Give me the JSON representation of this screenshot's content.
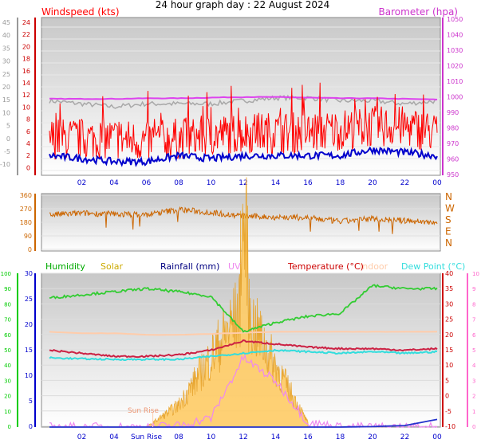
{
  "title": "24 hour graph day : 22 August 2024",
  "colors": {
    "windspeed": "#ff0000",
    "windavg": "#0000cc",
    "barometer": "#cc33cc",
    "barometer_line": "#dd44ee",
    "gust_grey": "#a8a8a8",
    "direction": "#cc6600",
    "humidity": "#00aa00",
    "humidity_line": "#33cc33",
    "solar": "#ccaa00",
    "solar_fill": "#ffcc66",
    "rainfall": "#000080",
    "rain_line": "#2233cc",
    "uv": "#ee88ee",
    "temperature": "#cc0000",
    "temp_line": "#cc2244",
    "indoor": "#ffccaa",
    "dewpoint": "#33dddd",
    "axis_blue": "#0000cc",
    "axis_green": "#00cc00",
    "axis_pink": "#ff66cc",
    "axis_red": "#cc0000",
    "axis_grey": "#999999"
  },
  "chart_data": [
    {
      "type": "line",
      "panel": "wind_baro",
      "labels": {
        "windspeed": "Windspeed (kts)",
        "barometer": "Barometer (hpa)"
      },
      "x_ticks": [
        "02",
        "04",
        "06",
        "08",
        "10",
        "12",
        "14",
        "16",
        "18",
        "20",
        "22",
        "00"
      ],
      "left_outer_ticks": [
        "45",
        "40",
        "35",
        "30",
        "25",
        "20",
        "15",
        "10",
        "5",
        "0",
        "-5",
        "-10"
      ],
      "left_inner_ticks": [
        "24",
        "22",
        "20",
        "18",
        "16",
        "14",
        "12",
        "10",
        "8",
        "6",
        "4",
        "2",
        "0"
      ],
      "right_ticks": [
        "1050",
        "1040",
        "1030",
        "1020",
        "1010",
        "1000",
        "990",
        "980",
        "970",
        "960",
        "950"
      ],
      "ylim_kts": [
        0,
        25
      ],
      "ylim_hpa": [
        945,
        1050
      ],
      "series": [
        {
          "name": "Barometer (hpa)",
          "x": [
            0,
            2,
            4,
            6,
            8,
            10,
            12,
            14,
            16,
            18,
            20,
            22,
            24
          ],
          "values": [
            1008,
            1008,
            1008,
            1008.5,
            1008.5,
            1009,
            1009.5,
            1009.5,
            1009,
            1008.5,
            1008.5,
            1008,
            1007.5
          ]
        },
        {
          "name": "Windspeed (kts)",
          "x": [
            0,
            2,
            4,
            6,
            8,
            10,
            12,
            14,
            16,
            18,
            20,
            22,
            24
          ],
          "values": [
            5,
            5,
            5,
            4.5,
            5,
            5.5,
            6,
            6,
            6,
            6.5,
            7,
            7,
            6
          ]
        },
        {
          "name": "gust",
          "x": [
            0,
            2,
            4,
            6,
            8,
            10,
            12,
            14,
            16,
            18,
            20,
            22,
            24
          ],
          "values": [
            9,
            8.5,
            8,
            8.5,
            8.5,
            8.5,
            9,
            9.5,
            9.5,
            9,
            9,
            8.5,
            9
          ]
        },
        {
          "name": "average",
          "x": [
            0,
            2,
            4,
            6,
            8,
            10,
            12,
            14,
            16,
            18,
            20,
            22,
            24
          ],
          "values": [
            2.5,
            2,
            1.5,
            1.5,
            2.5,
            2,
            2.5,
            2.5,
            2.5,
            2.5,
            3.5,
            3,
            2.5
          ]
        }
      ]
    },
    {
      "type": "line",
      "panel": "direction",
      "x_ticks": [],
      "left_ticks": [
        "360",
        "270",
        "180",
        "90",
        "0"
      ],
      "right_ticks": [
        "N",
        "W",
        "S",
        "E",
        "N"
      ],
      "ylim": [
        0,
        360
      ],
      "series": [
        {
          "name": "direction",
          "x": [
            0,
            2,
            4,
            6,
            8,
            10,
            12,
            14,
            16,
            18,
            20,
            22,
            24
          ],
          "values": [
            230,
            240,
            235,
            230,
            265,
            245,
            220,
            215,
            210,
            185,
            205,
            190,
            180
          ]
        }
      ]
    },
    {
      "type": "line",
      "panel": "temperature_combo",
      "legend": [
        "Humidity",
        "Solar",
        "Rainfall (mm)",
        "UV",
        "Temperature (°C)",
        "Indoor",
        "Dew Point (°C)"
      ],
      "annotations": [
        "Sun Rise",
        "Sun Rise"
      ],
      "x_ticks": [
        "02",
        "04",
        "Sun Rise",
        "08",
        "10",
        "12",
        "14",
        "16",
        "18",
        "20",
        "22",
        "00"
      ],
      "left_green_ticks": [
        "100",
        "90",
        "80",
        "70",
        "60",
        "50",
        "40",
        "30",
        "20",
        "10",
        "0"
      ],
      "left_blue_ticks": [
        "30",
        "25",
        "20",
        "15",
        "10",
        "5",
        "0"
      ],
      "right_red_ticks": [
        "40",
        "35",
        "30",
        "25",
        "20",
        "15",
        "10",
        "5",
        "0",
        "-5",
        "-10"
      ],
      "right_pink_ticks": [
        "10",
        "9",
        "8",
        "7",
        "6",
        "5",
        "4",
        "3",
        "2",
        "1",
        "0"
      ],
      "ylim_temp": [
        -10,
        40
      ],
      "series": [
        {
          "name": "Humidity",
          "x": [
            0,
            2,
            4,
            6,
            8,
            10,
            12,
            14,
            16,
            18,
            20,
            22,
            24
          ],
          "values": [
            84,
            86,
            88,
            90,
            88,
            85,
            62,
            68,
            72,
            74,
            92,
            90,
            90
          ]
        },
        {
          "name": "Temperature (°C)",
          "x": [
            0,
            2,
            4,
            6,
            8,
            10,
            12,
            14,
            16,
            18,
            20,
            22,
            24
          ],
          "values": [
            15,
            14,
            13,
            13,
            13.5,
            15,
            18,
            17,
            16,
            15.5,
            15.5,
            15,
            15.5
          ]
        },
        {
          "name": "Dew Point (°C)",
          "x": [
            0,
            2,
            4,
            6,
            8,
            10,
            12,
            14,
            16,
            18,
            20,
            22,
            24
          ],
          "values": [
            12.5,
            12.2,
            12,
            12,
            12,
            13,
            14,
            15,
            14.5,
            14,
            14.5,
            14,
            14.5
          ]
        },
        {
          "name": "Indoor",
          "x": [
            0,
            2,
            4,
            6,
            8,
            10,
            12,
            14,
            16,
            18,
            20,
            22,
            24
          ],
          "values": [
            21,
            20.5,
            20.5,
            20,
            20,
            20.3,
            20.7,
            21,
            21,
            21,
            21,
            21,
            21
          ]
        },
        {
          "name": "Rainfall (mm)",
          "x": [
            0,
            2,
            4,
            6,
            8,
            10,
            12,
            14,
            16,
            18,
            20,
            22,
            24
          ],
          "values": [
            0,
            0,
            0,
            0,
            0,
            0,
            0,
            0,
            0,
            0,
            0.1,
            0.3,
            1.5
          ]
        },
        {
          "name": "UV",
          "x": [
            0,
            2,
            4,
            6,
            8,
            10,
            12,
            14,
            16,
            18,
            20,
            22,
            24
          ],
          "values": [
            0,
            0,
            0,
            0,
            0.1,
            0.6,
            4.5,
            3,
            0.3,
            0,
            0,
            0,
            0
          ]
        },
        {
          "name": "Solar",
          "x": [
            0,
            2,
            4,
            6,
            8,
            10,
            12,
            14,
            16,
            18,
            20,
            22,
            24
          ],
          "values": [
            0,
            0,
            0,
            0,
            2.5,
            8,
            14,
            7,
            0.5,
            0,
            0,
            0,
            0
          ]
        }
      ]
    }
  ]
}
